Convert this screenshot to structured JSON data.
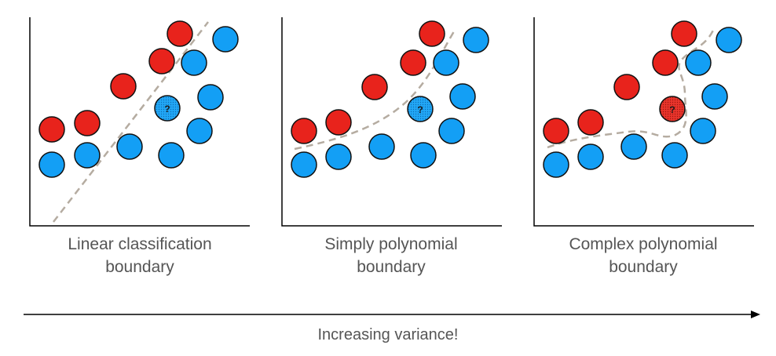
{
  "colors": {
    "class_a": "#e8231c",
    "class_b": "#139ff5",
    "boundary": "#b5aca1",
    "axis": "#000000",
    "text": "#555555"
  },
  "panels": [
    {
      "caption_line1": "Linear classification",
      "caption_line2": "boundary",
      "unknown_mark": "?",
      "unknown_class": "class_b"
    },
    {
      "caption_line1": "Simply polynomial",
      "caption_line2": "boundary",
      "unknown_mark": "?",
      "unknown_class": "class_b"
    },
    {
      "caption_line1": "Complex polynomial",
      "caption_line2": "boundary",
      "unknown_mark": "?",
      "unknown_class": "class_a"
    }
  ],
  "arrow_label": "Increasing variance!"
}
